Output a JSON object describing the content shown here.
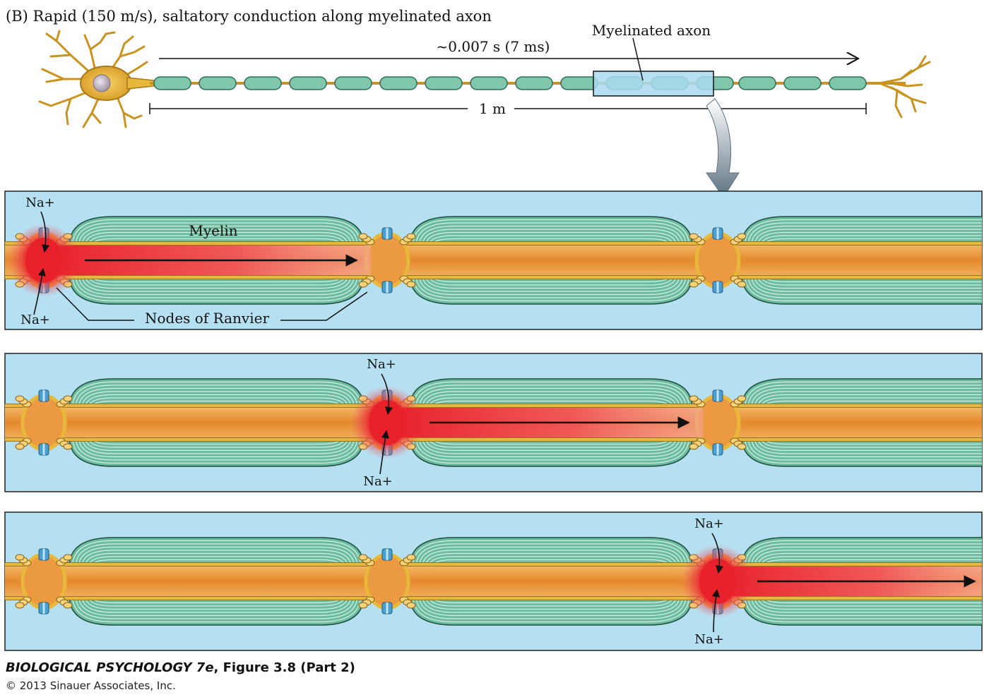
{
  "header": {
    "title": "(B)  Rapid (150 m/s), saltatory conduction along myelinated axon",
    "time_label": "~0.007 s (7 ms)",
    "distance_label": "1 m",
    "callout_label": "Myelinated axon"
  },
  "panel1": {
    "myelin_label": "Myelin",
    "na_top": "Na+",
    "na_bottom": "Na+",
    "nodes_label": "Nodes of Ranvier"
  },
  "panel2": {
    "na_top": "Na+",
    "na_bottom": "Na+"
  },
  "panel3": {
    "na_top": "Na+",
    "na_bottom": "Na+"
  },
  "caption": {
    "book_title": "BIOLOGICAL PSYCHOLOGY 7e",
    "figure_label": ", Figure 3.8 (Part 2)",
    "copyright": "© 2013 Sinauer Associates, Inc."
  },
  "colors": {
    "background_panel": "#b5e0f2",
    "myelin": "#6cbca0",
    "axon": "#e9973a",
    "depolarization": "#e8202a",
    "neuron": "#e7b83a",
    "channel": "#4a9fd0"
  }
}
